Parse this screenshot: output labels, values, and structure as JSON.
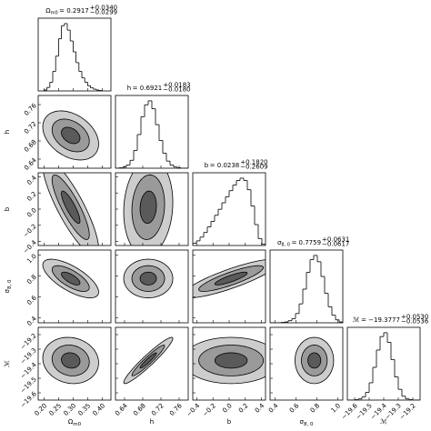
{
  "chart_data": {
    "type": "corner",
    "params": [
      {
        "symbol": "Ω",
        "sub": "m0",
        "title": {
          "text": "= 0.2917",
          "upper": "+0.0340",
          "lower": "−0.0299"
        },
        "lim": [
          0.18,
          0.43
        ],
        "ticks": [
          {
            "value": 0.2,
            "label": "0.20"
          },
          {
            "value": 0.25,
            "label": "0.25"
          },
          {
            "value": 0.3,
            "label": "0.30"
          },
          {
            "value": 0.35,
            "label": "0.35"
          },
          {
            "value": 0.4,
            "label": "0.40"
          }
        ],
        "mean": 0.2917,
        "sd": 0.032,
        "bins": [
          0.2,
          0.21,
          0.22,
          0.23,
          0.24,
          0.25,
          0.26,
          0.27,
          0.28,
          0.29,
          0.3,
          0.31,
          0.32,
          0.33,
          0.34,
          0.35,
          0.36,
          0.37,
          0.38,
          0.39,
          0.4
        ],
        "counts": [
          2,
          8,
          20,
          45,
          80,
          120,
          150,
          155,
          140,
          115,
          90,
          65,
          45,
          30,
          20,
          12,
          7,
          4,
          2,
          1
        ]
      },
      {
        "symbol": "h",
        "title": {
          "text": "= 0.6921",
          "upper": "+0.0183",
          "lower": "−0.0180"
        },
        "lim": [
          0.62,
          0.78
        ],
        "ticks": [
          {
            "value": 0.64,
            "label": "0.64"
          },
          {
            "value": 0.68,
            "label": "0.68"
          },
          {
            "value": 0.72,
            "label": "0.72"
          },
          {
            "value": 0.76,
            "label": "0.76"
          }
        ],
        "mean": 0.6921,
        "sd": 0.018,
        "bins": [
          0.62,
          0.628,
          0.636,
          0.644,
          0.652,
          0.66,
          0.668,
          0.676,
          0.684,
          0.692,
          0.7,
          0.708,
          0.716,
          0.724,
          0.732,
          0.74,
          0.748,
          0.756,
          0.764,
          0.772,
          0.78
        ],
        "counts": [
          0,
          1,
          3,
          8,
          20,
          45,
          85,
          130,
          160,
          170,
          150,
          110,
          70,
          38,
          18,
          8,
          3,
          1,
          0,
          0
        ]
      },
      {
        "symbol": "b",
        "title": {
          "text": "= 0.0238",
          "upper": "+0.1820",
          "lower": "−0.2609"
        },
        "lim": [
          -0.45,
          0.45
        ],
        "ticks": [
          {
            "value": -0.4,
            "label": "−0.4"
          },
          {
            "value": -0.2,
            "label": "−0.2"
          },
          {
            "value": 0,
            "label": "0.0"
          },
          {
            "value": 0.2,
            "label": "0.2"
          },
          {
            "value": 0.4,
            "label": "0.4"
          }
        ],
        "mean": 0.0238,
        "sd": 0.2,
        "bins": [
          -0.45,
          -0.405,
          -0.36,
          -0.315,
          -0.27,
          -0.225,
          -0.18,
          -0.135,
          -0.09,
          -0.045,
          0,
          0.045,
          0.09,
          0.135,
          0.18,
          0.225,
          0.27,
          0.315,
          0.36,
          0.405,
          0.45
        ],
        "counts": [
          5,
          10,
          18,
          28,
          40,
          52,
          65,
          78,
          92,
          105,
          118,
          130,
          140,
          145,
          140,
          120,
          85,
          45,
          15,
          3
        ]
      },
      {
        "symbol": "σ",
        "sub": "8, 0",
        "title": {
          "text": "= 0.7759",
          "upper": "+0.0631",
          "lower": "−0.0617"
        },
        "lim": [
          0.35,
          1.05
        ],
        "ticks": [
          {
            "value": 0.4,
            "label": "0.4"
          },
          {
            "value": 0.6,
            "label": "0.6"
          },
          {
            "value": 0.8,
            "label": "0.8"
          },
          {
            "value": 1,
            "label": "1.0"
          }
        ],
        "mean": 0.7759,
        "sd": 0.062,
        "bins": [
          0.35,
          0.385,
          0.42,
          0.455,
          0.49,
          0.525,
          0.56,
          0.595,
          0.63,
          0.665,
          0.7,
          0.735,
          0.77,
          0.805,
          0.84,
          0.875,
          0.91,
          0.945,
          0.98,
          1.015,
          1.05
        ],
        "counts": [
          0,
          0,
          0,
          1,
          2,
          5,
          10,
          22,
          45,
          80,
          120,
          150,
          160,
          145,
          110,
          70,
          38,
          18,
          7,
          2
        ]
      },
      {
        "symbol": "ℳ",
        "title": {
          "text": "= −19.3777",
          "upper": "+0.0530",
          "lower": "−0.0536"
        },
        "lim": [
          -19.65,
          -19.15
        ],
        "ticks": [
          {
            "value": -19.6,
            "label": "−19.6"
          },
          {
            "value": -19.5,
            "label": "−19.5"
          },
          {
            "value": -19.4,
            "label": "−19.4"
          },
          {
            "value": -19.3,
            "label": "−19.3"
          },
          {
            "value": -19.2,
            "label": "−19.2"
          }
        ],
        "mean": -19.3777,
        "sd": 0.053,
        "bins": [
          -19.65,
          -19.625,
          -19.6,
          -19.575,
          -19.55,
          -19.525,
          -19.5,
          -19.475,
          -19.45,
          -19.425,
          -19.4,
          -19.375,
          -19.35,
          -19.325,
          -19.3,
          -19.275,
          -19.25,
          -19.225,
          -19.2,
          -19.175,
          -19.15
        ],
        "counts": [
          0,
          0,
          1,
          3,
          8,
          20,
          45,
          85,
          130,
          165,
          175,
          150,
          105,
          60,
          28,
          10,
          3,
          1,
          0,
          0
        ]
      }
    ],
    "corr": [
      [
        -0.35
      ],
      [
        -0.85,
        0.1
      ],
      [
        -0.7,
        0,
        0.85
      ],
      [
        -0.1,
        0.95,
        0,
        0
      ]
    ],
    "contour_sigmas": [
      1,
      2,
      3
    ],
    "contour_colors": [
      "#5a5a5a",
      "#9a9a9a",
      "#cdcdcd"
    ],
    "hist_color": "#000000"
  }
}
